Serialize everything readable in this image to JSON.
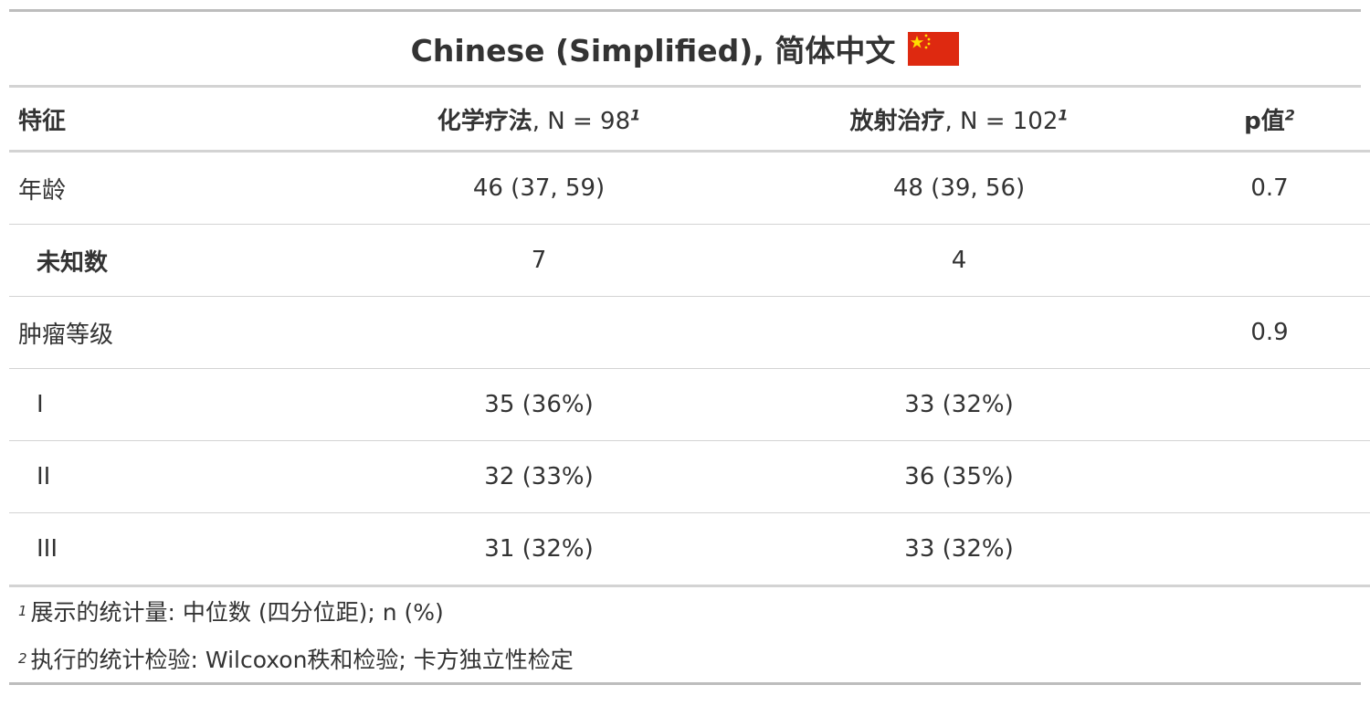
{
  "title": {
    "text": "Chinese (Simplified), 简体中文",
    "flag_icon": "china-flag-icon",
    "flag_color": "#de2910",
    "star_color": "#ffde00"
  },
  "header": {
    "characteristic": "特征",
    "chemo_name": "化学疗法",
    "chemo_n": ", N = 98",
    "chemo_sup": "1",
    "radio_name": "放射治疗",
    "radio_n": ", N = 102",
    "radio_sup": "1",
    "p_label": "p值",
    "p_sup": "2"
  },
  "rows": [
    {
      "label": "年龄",
      "chemo": "46 (37, 59)",
      "radio": "48 (39, 56)",
      "p": "0.7"
    },
    {
      "label": "未知数",
      "chemo": "7",
      "radio": "4",
      "p": ""
    },
    {
      "label": "肿瘤等级",
      "chemo": "",
      "radio": "",
      "p": "0.9"
    },
    {
      "label": "I",
      "chemo": "35 (36%)",
      "radio": "33 (32%)",
      "p": ""
    },
    {
      "label": "II",
      "chemo": "32 (33%)",
      "radio": "36 (35%)",
      "p": ""
    },
    {
      "label": "III",
      "chemo": "31 (32%)",
      "radio": "33 (32%)",
      "p": ""
    }
  ],
  "footnotes": [
    {
      "mark": "1",
      "text": "展示的统计量: 中位数 (四分位距); n (%)"
    },
    {
      "mark": "2",
      "text": "执行的统计检验: Wilcoxon秩和检验; 卡方独立性检定"
    }
  ]
}
